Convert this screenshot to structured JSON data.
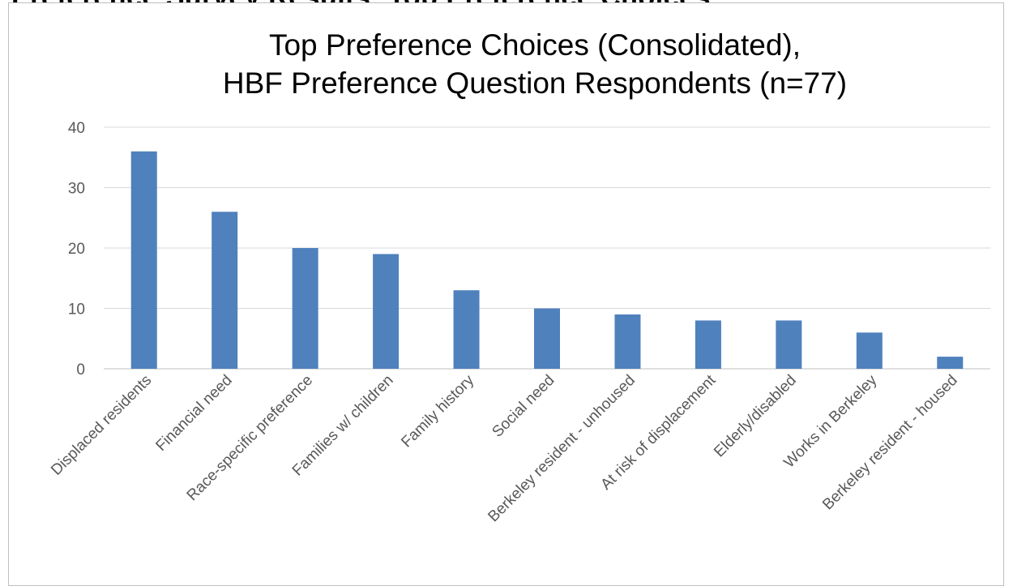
{
  "header": {
    "cut_text": "Preference Survey Results: Top Preference Choices"
  },
  "chart_data": {
    "type": "bar",
    "title_lines": [
      "Top Preference Choices (Consolidated),",
      "HBF Preference Question Respondents (n=77)"
    ],
    "categories": [
      "Displaced residents",
      "Financial need",
      "Race-specific preference",
      "Families w/ children",
      "Family history",
      "Social need",
      "Berkeley resident - unhoused",
      "At risk of displacement",
      "Elderly/disabled",
      "Works in Berkeley",
      "Berkeley resident - housed"
    ],
    "values": [
      36,
      26,
      20,
      19,
      13,
      10,
      9,
      8,
      8,
      6,
      2
    ],
    "ylim": [
      0,
      40
    ],
    "yticks": [
      0,
      10,
      20,
      30,
      40
    ],
    "grid": true,
    "legend": "none",
    "colors": {
      "bar": "#4f81bd",
      "grid": "#d9d9d9",
      "axis": "#bfbfbf",
      "text": "#595959"
    }
  }
}
